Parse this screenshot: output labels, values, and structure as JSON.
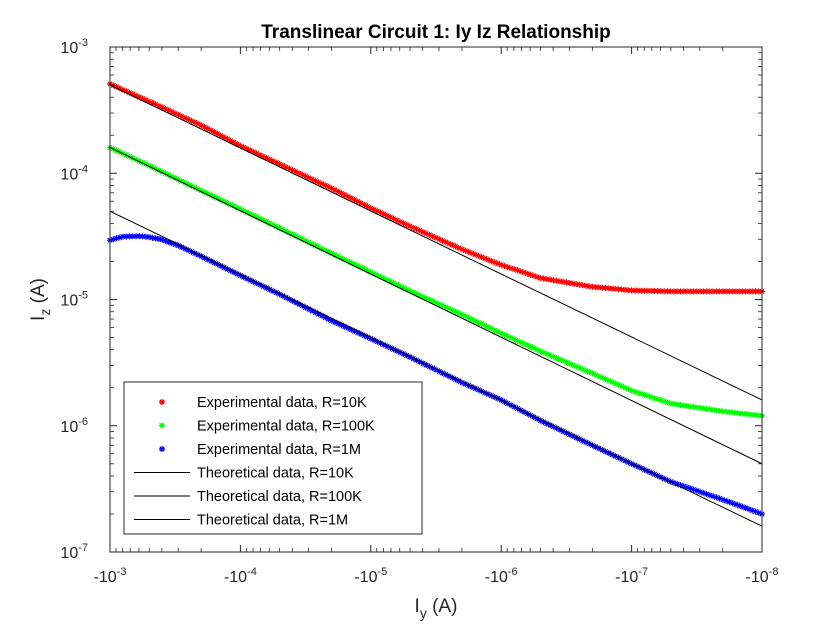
{
  "chart_data": {
    "type": "line",
    "title": "Translinear Circuit 1: Iy Iz Relationship",
    "xlabel": {
      "base": "I",
      "sub": "y",
      "unit": " (A)"
    },
    "ylabel": {
      "base": "I",
      "sub": "z",
      "unit": " (A)"
    },
    "x_scale": "log",
    "y_scale": "log",
    "x_direction": "negative, magnitude decreasing left to right",
    "xlim": [
      -0.001,
      -1e-08
    ],
    "ylim": [
      1e-07,
      0.001
    ],
    "xticks": [
      {
        "exp": "-3",
        "value": -0.001
      },
      {
        "exp": "-4",
        "value": -0.0001
      },
      {
        "exp": "-5",
        "value": -1e-05
      },
      {
        "exp": "-6",
        "value": -1e-06
      },
      {
        "exp": "-7",
        "value": -1e-07
      },
      {
        "exp": "-8",
        "value": -1e-08
      }
    ],
    "yticks": [
      {
        "exp": "-3",
        "value": 0.001
      },
      {
        "exp": "-4",
        "value": 0.0001
      },
      {
        "exp": "-5",
        "value": 1e-05
      },
      {
        "exp": "-6",
        "value": 1e-06
      },
      {
        "exp": "-7",
        "value": 1e-07
      }
    ],
    "tick_base": "10",
    "tick_prefix": "-",
    "grid": false,
    "legend_position": "bottom-left",
    "series": [
      {
        "name": "Experimental data, R=10K",
        "style": "markers",
        "marker": "*",
        "color": "#ff0000",
        "x": [
          -0.001,
          -0.0005,
          -0.0002,
          -0.0001,
          -5e-05,
          -2e-05,
          -1e-05,
          -5e-06,
          -2e-06,
          -1e-06,
          -5e-07,
          -2e-07,
          -1e-07,
          -5e-08,
          -2e-08,
          -1e-08
        ],
        "y": [
          0.00051,
          0.00037,
          0.00024,
          0.000165,
          0.000118,
          7.6e-05,
          5.3e-05,
          3.8e-05,
          2.5e-05,
          1.88e-05,
          1.48e-05,
          1.26e-05,
          1.18e-05,
          1.16e-05,
          1.16e-05,
          1.16e-05
        ]
      },
      {
        "name": "Experimental data, R=100K",
        "style": "markers",
        "marker": "*",
        "color": "#00ff00",
        "x": [
          -0.001,
          -0.0005,
          -0.0002,
          -0.0001,
          -5e-05,
          -2e-05,
          -1e-05,
          -5e-06,
          -2e-06,
          -1e-06,
          -5e-07,
          -2e-07,
          -1e-07,
          -5e-08,
          -2e-08,
          -1e-08
        ],
        "y": [
          0.00016,
          0.000115,
          7.3e-05,
          5.2e-05,
          3.68e-05,
          2.32e-05,
          1.65e-05,
          1.17e-05,
          7.6e-06,
          5.4e-06,
          3.9e-06,
          2.6e-06,
          1.9e-06,
          1.5e-06,
          1.3e-06,
          1.2e-06
        ]
      },
      {
        "name": "Experimental data, R=1M",
        "style": "markers",
        "marker": "*",
        "color": "#0000ff",
        "x": [
          -0.001,
          -0.0008,
          -0.0006,
          -0.0005,
          -0.0004,
          -0.0003,
          -0.0002,
          -0.0001,
          -5e-05,
          -2e-05,
          -1e-05,
          -5e-06,
          -2e-06,
          -1e-06,
          -5e-07,
          -2e-07,
          -1e-07,
          -5e-08,
          -2e-08,
          -1e-08
        ],
        "y": [
          2.95e-05,
          3.15e-05,
          3.18e-05,
          3.12e-05,
          2.98e-05,
          2.68e-05,
          2.2e-05,
          1.55e-05,
          1.1e-05,
          6.8e-06,
          4.9e-06,
          3.5e-06,
          2.2e-06,
          1.6e-06,
          1.1e-06,
          7e-07,
          5e-07,
          3.6e-07,
          2.6e-07,
          2e-07
        ]
      },
      {
        "name": "Theoretical data, R=10K",
        "style": "line",
        "color": "#000000",
        "x": [
          -0.001,
          -1e-08
        ],
        "y": [
          0.0005,
          1.6e-06
        ]
      },
      {
        "name": "Theoretical data, R=100K",
        "style": "line",
        "color": "#000000",
        "x": [
          -0.001,
          -1e-08
        ],
        "y": [
          0.00016,
          5e-07
        ]
      },
      {
        "name": "Theoretical data, R=1M",
        "style": "line",
        "color": "#000000",
        "x": [
          -0.001,
          -1e-08
        ],
        "y": [
          5e-05,
          1.6e-07
        ]
      }
    ]
  }
}
